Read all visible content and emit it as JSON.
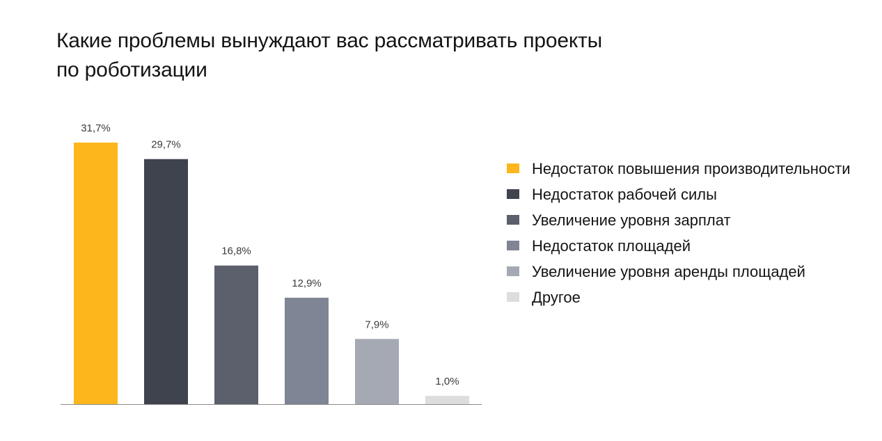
{
  "title": "Какие проблемы вынуждают вас рассматривать проекты по роботизации",
  "chart_data": {
    "type": "bar",
    "title": "Какие проблемы вынуждают вас рассматривать проекты по роботизации",
    "categories": [
      "Недостаток повышения производительности",
      "Недостаток рабочей силы",
      "Увеличение уровня зарплат",
      "Недостаток площадей",
      "Увеличение уровня аренды площадей",
      "Другое"
    ],
    "values": [
      31.7,
      29.7,
      16.8,
      12.9,
      7.9,
      1.0
    ],
    "value_labels": [
      "31,7%",
      "29,7%",
      "16,8%",
      "12,9%",
      "7,9%",
      "1,0%"
    ],
    "colors": [
      "#fdb61c",
      "#3f434d",
      "#5b606c",
      "#7f8595",
      "#a4a9b3",
      "#dddde0"
    ],
    "unit": "%",
    "ylim": [
      0,
      31.7
    ],
    "grid": false,
    "legend_position": "right"
  }
}
